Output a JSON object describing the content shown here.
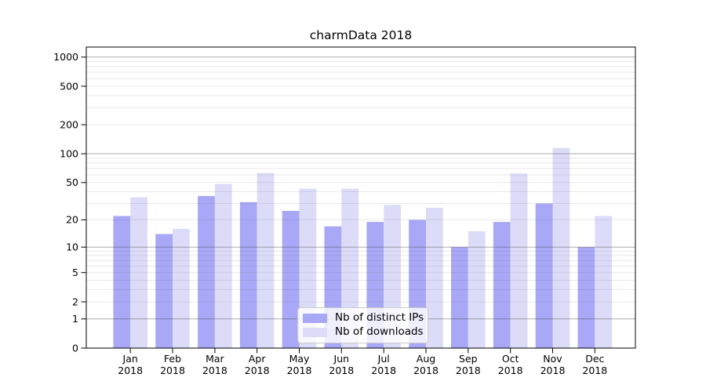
{
  "chart_data": {
    "type": "bar",
    "title": "charmData 2018",
    "categories": [
      "Jan",
      "Feb",
      "Mar",
      "Apr",
      "May",
      "Jun",
      "Jul",
      "Aug",
      "Sep",
      "Oct",
      "Nov",
      "Dec"
    ],
    "year_label": "2018",
    "series": [
      {
        "name": "Nb of distinct IPs",
        "color": "#a8a8f6",
        "values": [
          22,
          14,
          36,
          31,
          25,
          17,
          19,
          20,
          10,
          19,
          30,
          10
        ]
      },
      {
        "name": "Nb of downloads",
        "color": "#dcdcf9",
        "values": [
          35,
          16,
          48,
          63,
          43,
          43,
          29,
          27,
          15,
          62,
          115,
          22
        ]
      }
    ],
    "yscale": "log1p",
    "ylim": [
      0,
      1270
    ],
    "ytick_values": [
      0,
      1,
      2,
      5,
      10,
      20,
      50,
      100,
      200,
      500,
      1000
    ],
    "major_grid_values": [
      1,
      10,
      100,
      1000
    ],
    "grid": true,
    "legend_position": "lower center",
    "colors": {
      "major_grid": "rgba(70,70,70,0.45)",
      "minor_grid": "rgba(70,70,70,0.12)",
      "spine": "#000000"
    }
  }
}
